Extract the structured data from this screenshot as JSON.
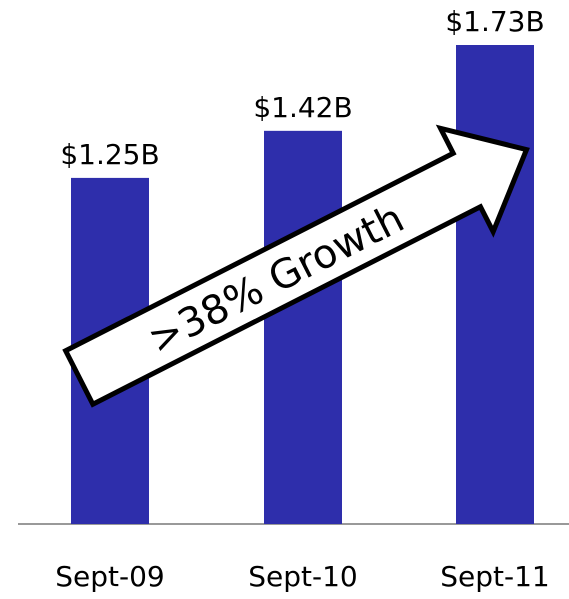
{
  "chart_data": {
    "type": "bar",
    "categories": [
      "Sept-09",
      "Sept-10",
      "Sept-11"
    ],
    "values": [
      1.25,
      1.42,
      1.73
    ],
    "value_labels": [
      "$1.25B",
      "$1.42B",
      "$1.73B"
    ],
    "color": "#2e2eab",
    "annotation": ">38% Growth"
  }
}
